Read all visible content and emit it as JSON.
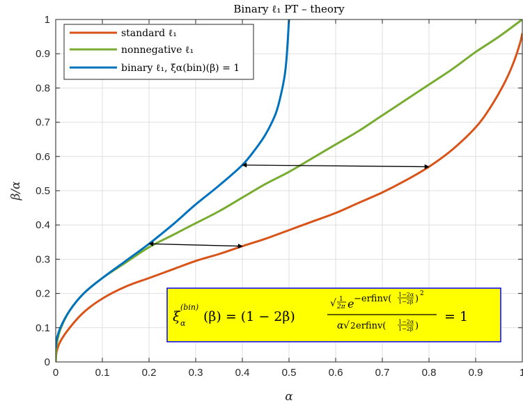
{
  "chart_data": {
    "type": "line",
    "title": "Binary ℓ₁ PT – theory",
    "xlabel": "α",
    "ylabel": "β/α",
    "xlim": [
      0,
      1
    ],
    "ylim": [
      0,
      1
    ],
    "xticks": [
      "0",
      "0.1",
      "0.2",
      "0.3",
      "0.4",
      "0.5",
      "0.6",
      "0.7",
      "0.8",
      "0.9",
      "1"
    ],
    "yticks": [
      "0",
      "0.1",
      "0.2",
      "0.3",
      "0.4",
      "0.5",
      "0.6",
      "0.7",
      "0.8",
      "0.9",
      "1"
    ],
    "grid": true,
    "legend_position": "top-left",
    "series": [
      {
        "name": "standard ℓ₁",
        "color": "#d95319",
        "x": [
          0.0,
          0.002,
          0.01,
          0.03,
          0.06,
          0.1,
          0.15,
          0.2,
          0.25,
          0.3,
          0.35,
          0.4,
          0.45,
          0.5,
          0.55,
          0.6,
          0.65,
          0.7,
          0.75,
          0.8,
          0.85,
          0.9,
          0.93,
          0.96,
          0.98,
          0.995,
          1.0
        ],
        "y": [
          0.0,
          0.03,
          0.06,
          0.1,
          0.145,
          0.185,
          0.22,
          0.245,
          0.27,
          0.295,
          0.315,
          0.338,
          0.36,
          0.385,
          0.41,
          0.435,
          0.465,
          0.495,
          0.53,
          0.57,
          0.62,
          0.685,
          0.74,
          0.81,
          0.87,
          0.93,
          0.96
        ]
      },
      {
        "name": "nonnegative ℓ₁",
        "color": "#77ac30",
        "x": [
          0.0,
          0.002,
          0.01,
          0.03,
          0.06,
          0.1,
          0.15,
          0.2,
          0.25,
          0.3,
          0.35,
          0.4,
          0.45,
          0.5,
          0.55,
          0.6,
          0.65,
          0.7,
          0.75,
          0.8,
          0.85,
          0.9,
          0.95,
          1.0
        ],
        "y": [
          0.0,
          0.05,
          0.095,
          0.15,
          0.2,
          0.245,
          0.29,
          0.335,
          0.37,
          0.405,
          0.44,
          0.48,
          0.52,
          0.555,
          0.595,
          0.635,
          0.675,
          0.72,
          0.765,
          0.81,
          0.855,
          0.905,
          0.95,
          1.0
        ]
      },
      {
        "name": "binary ℓ₁, ξα(bin)(β) = 1",
        "color": "#0072bd",
        "x": [
          0.0,
          0.002,
          0.01,
          0.03,
          0.06,
          0.1,
          0.15,
          0.2,
          0.25,
          0.3,
          0.35,
          0.4,
          0.43,
          0.45,
          0.47,
          0.48,
          0.49,
          0.495,
          0.5
        ],
        "y": [
          0.04,
          0.065,
          0.1,
          0.15,
          0.2,
          0.245,
          0.295,
          0.345,
          0.4,
          0.46,
          0.515,
          0.575,
          0.625,
          0.665,
          0.72,
          0.765,
          0.83,
          0.89,
          1.0
        ]
      }
    ],
    "annotations": [
      {
        "type": "double-arrow",
        "from": [
          0.2,
          0.345
        ],
        "to": [
          0.4,
          0.338
        ]
      },
      {
        "type": "double-arrow",
        "from": [
          0.4,
          0.575
        ],
        "to": [
          0.8,
          0.57
        ]
      }
    ],
    "formula": {
      "lhs": "ξ",
      "lhs_sub": "α",
      "lhs_sup": "(bin)",
      "arg": "(β) = (1 − 2β)",
      "num_sqrt_num": "1",
      "num_sqrt_den": "2π",
      "num_e": "e",
      "num_exp": "−erfinv(",
      "frac_num": "1−2α",
      "frac_den": "1−2β",
      "num_exp_close": ")",
      "num_exp_sq": "2",
      "den_prefix": "α",
      "den_sqrt": "2",
      "den_erf": "erfinv(",
      "den_close": ")",
      "rhs": "= 1",
      "box_fill": "#ffff00",
      "box_stroke": "#0000ff"
    }
  }
}
